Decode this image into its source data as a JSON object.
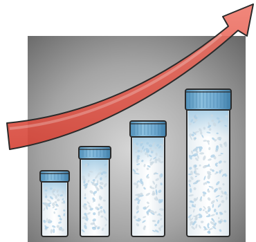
{
  "illustration": {
    "subject": "growth-vials-with-rising-arrow",
    "icon_name": "rising-arrow-icon",
    "level_fractions": [
      0.35,
      0.48,
      0.62,
      0.79
    ],
    "colors": {
      "background_light": "#c8c8c8",
      "background_dark": "#6f6f6f",
      "arrow_red": "#e85b4f",
      "arrow_dark": "#c63c31",
      "cap_blue": "#7ab3d5",
      "cap_dark": "#4f8fb8",
      "outline": "#2a2a2a",
      "pill_white": "#f5fbff",
      "pill_blue": "#a9cde6"
    }
  }
}
